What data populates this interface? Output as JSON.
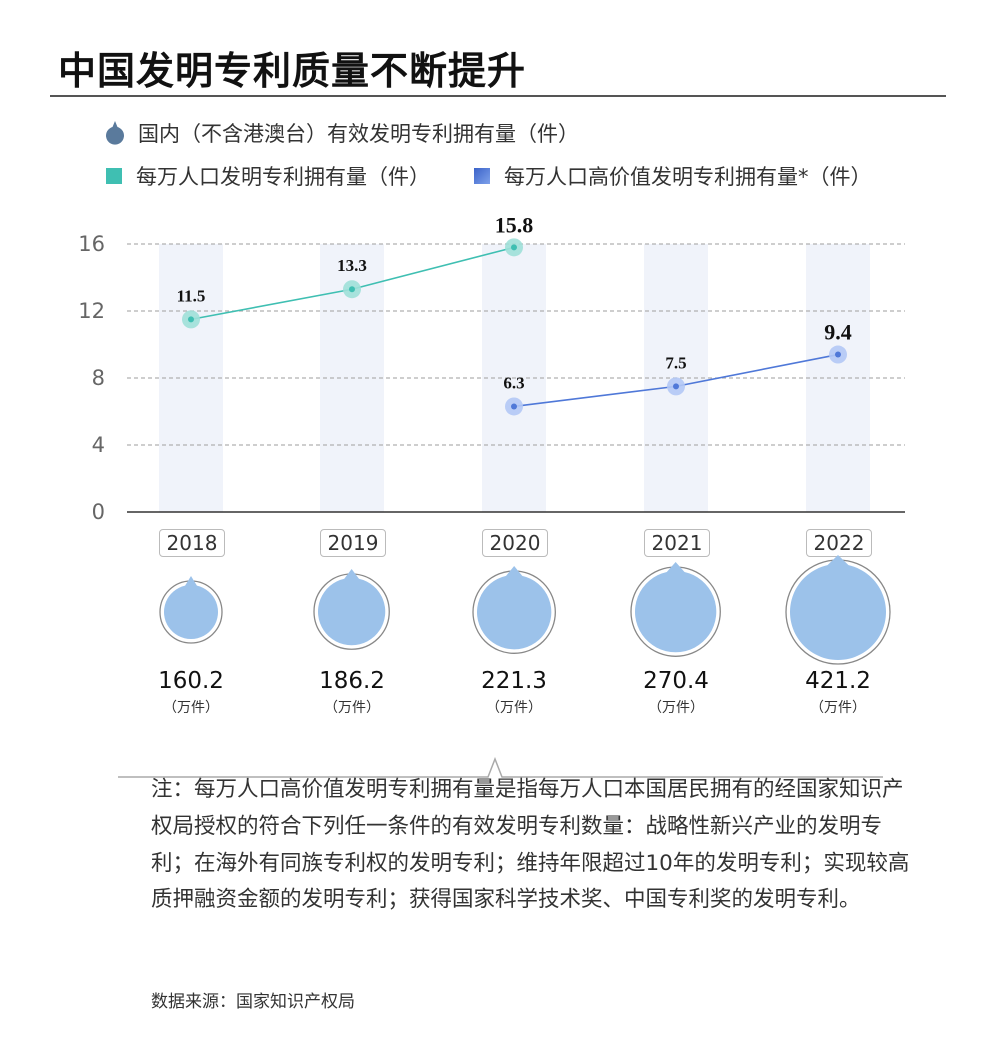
{
  "title": "中国发明专利质量不断提升",
  "legend": {
    "total": "国内（不含港澳台）有效发明专利拥有量（件）",
    "per_capita": "每万人口发明专利拥有量（件）",
    "high_value": "每万人口高价值发明专利拥有量*（件）"
  },
  "colors": {
    "per_capita": "#3fbfb2",
    "high_value": "#4f78d8",
    "bubble": "#9cc2ea",
    "column": "#f0f3fa"
  },
  "chart_data": {
    "type": "line",
    "categories": [
      "2018",
      "2019",
      "2020",
      "2021",
      "2022"
    ],
    "ylim": [
      0,
      16
    ],
    "yticks": [
      0,
      4,
      8,
      12,
      16
    ],
    "grid": "dashed horizontal",
    "series": [
      {
        "name": "每万人口发明专利拥有量（件）",
        "values": [
          11.5,
          13.3,
          15.8,
          null,
          null
        ],
        "labels": [
          "11.5",
          "13.3",
          "15.8",
          "",
          ""
        ]
      },
      {
        "name": "每万人口高价值发明专利拥有量*（件）",
        "values": [
          null,
          null,
          6.3,
          7.5,
          9.4
        ],
        "labels": [
          "",
          "",
          "6.3",
          "7.5",
          "9.4"
        ]
      }
    ],
    "totals": {
      "name": "国内（不含港澳台）有效发明专利拥有量（件）",
      "values": [
        160.2,
        186.2,
        221.3,
        270.4,
        421.2
      ],
      "labels": [
        "160.2",
        "186.2",
        "221.3",
        "270.4",
        "421.2"
      ],
      "unit": "（万件）"
    }
  },
  "note": "注：每万人口高价值发明专利拥有量是指每万人口本国居民拥有的经国家知识产权局授权的符合下列任一条件的有效发明专利数量：战略性新兴产业的发明专利；在海外有同族专利权的发明专利；维持年限超过10年的发明专利；实现较高质押融资金额的发明专利；获得国家科学技术奖、中国专利奖的发明专利。",
  "source": "数据来源：国家知识产权局"
}
